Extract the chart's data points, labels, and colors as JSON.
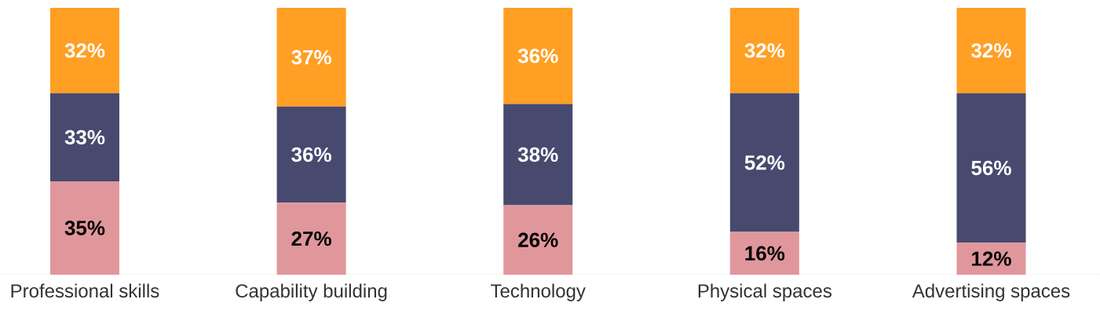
{
  "chart_data": {
    "type": "bar",
    "stacked": true,
    "categories": [
      "Professional skills",
      "Capability building",
      "Technology",
      "Physical spaces",
      "Advertising spaces"
    ],
    "ylim": [
      0,
      100
    ],
    "series": [
      {
        "color": "#e0979c",
        "values": [
          35,
          27,
          26,
          16,
          12
        ],
        "value_labels": [
          "35%",
          "27%",
          "26%",
          "16%",
          "12%"
        ]
      },
      {
        "color": "#474a6e",
        "values": [
          33,
          36,
          38,
          52,
          56
        ],
        "value_labels": [
          "33%",
          "36%",
          "38%",
          "52%",
          "56%"
        ]
      },
      {
        "color": "#ff9f24",
        "values": [
          32,
          37,
          36,
          32,
          32
        ],
        "value_labels": [
          "32%",
          "37%",
          "36%",
          "32%",
          "32%"
        ]
      }
    ]
  }
}
